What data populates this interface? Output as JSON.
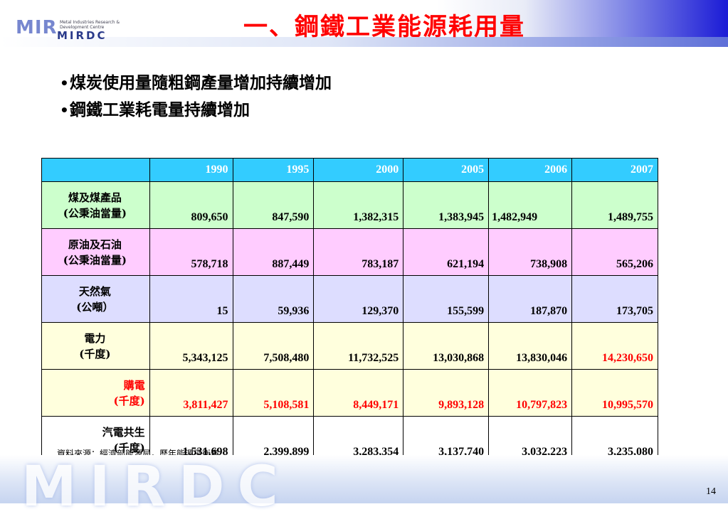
{
  "header": {
    "title": "一、鋼鐵工業能源耗用量",
    "logo_main": "MIR",
    "logo_sub": "MIRDC",
    "logo_en": "Metal Industries Research & Development Centre"
  },
  "bullets": [
    "煤炭使用量隨粗鋼產量增加持續增加",
    "鋼鐵工業耗電量持續增加"
  ],
  "table": {
    "years": [
      "1990",
      "1995",
      "2000",
      "2005",
      "2006",
      "2007"
    ],
    "rows": [
      {
        "label1": "煤及煤產品",
        "label2": "(公秉油當量)",
        "values": [
          "809,650",
          "847,590",
          "1,382,315",
          "1,383,945",
          "1,482,949",
          "1,489,755"
        ]
      },
      {
        "label1": "原油及石油",
        "label2": "(公秉油當量)",
        "values": [
          "578,718",
          "887,449",
          "783,187",
          "621,194",
          "738,908",
          "565,206"
        ]
      },
      {
        "label1": "天然氣",
        "label2": "(公噸）",
        "values": [
          "15",
          "59,936",
          "129,370",
          "155,599",
          "187,870",
          "173,705"
        ]
      },
      {
        "label1": "電力",
        "label2": "(千度)",
        "values": [
          "5,343,125",
          "7,508,480",
          "11,732,525",
          "13,030,868",
          "13,830,046",
          "14,230,650"
        ]
      },
      {
        "label1": "購電",
        "label2": "(千度)",
        "values": [
          "3,811,427",
          "5,108,581",
          "8,449,171",
          "9,893,128",
          "10,797,823",
          "10,995,570"
        ]
      },
      {
        "label1": "汽電共生",
        "label2": "(千度)",
        "values": [
          "1,531,698",
          "2,399,899",
          "3,283,354",
          "3,137,740",
          "3,032,223",
          "3,235,080"
        ]
      }
    ]
  },
  "source": "資料來源：經濟部能源局，歷年能源平衡表",
  "watermark": "MIRDC",
  "page_number": "14",
  "colors": {
    "title": "#ff0000",
    "header_bg": "#33ccff",
    "highlight": "#ff0000"
  }
}
